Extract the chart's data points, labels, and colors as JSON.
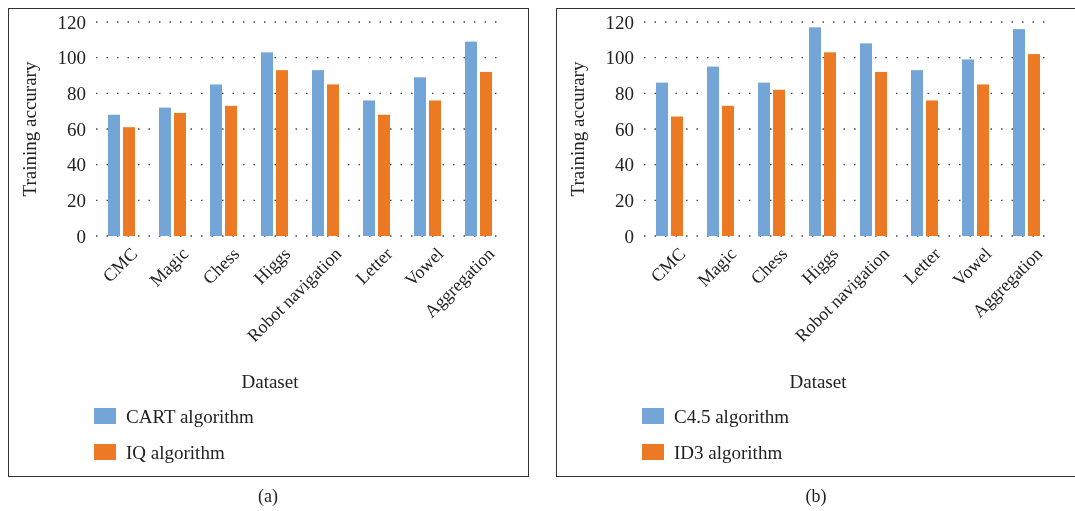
{
  "chart_data": [
    {
      "type": "bar",
      "xlabel": "Dataset",
      "ylabel": "Training accurary",
      "categories": [
        "CMC",
        "Magic",
        "Chess",
        "Higgs",
        "Robot navigation",
        "Letter",
        "Vowel",
        "Aggregation"
      ],
      "series": [
        {
          "name": "CART algorithm",
          "color": "#73a5d6",
          "values": [
            68,
            72,
            85,
            103,
            93,
            76,
            89,
            109
          ]
        },
        {
          "name": "IQ algorithm",
          "color": "#ec7a24",
          "values": [
            61,
            69,
            73,
            93,
            85,
            68,
            76,
            92
          ]
        }
      ],
      "ylim": [
        0,
        120
      ],
      "yticks": [
        0,
        20,
        40,
        60,
        80,
        100,
        120
      ],
      "grid": "y",
      "legend": "bottom left",
      "annotations": [
        "(a)"
      ]
    },
    {
      "type": "bar",
      "xlabel": "Dataset",
      "ylabel": "Training accurary",
      "categories": [
        "CMC",
        "Magic",
        "Chess",
        "Higgs",
        "Robot navigation",
        "Letter",
        "Vowel",
        "Aggregation"
      ],
      "series": [
        {
          "name": "C4.5 algorithm",
          "color": "#73a5d6",
          "values": [
            86,
            95,
            86,
            117,
            108,
            93,
            99,
            116
          ]
        },
        {
          "name": "ID3 algorithm",
          "color": "#ec7a24",
          "values": [
            67,
            73,
            82,
            103,
            92,
            76,
            85,
            102
          ]
        }
      ],
      "ylim": [
        0,
        120
      ],
      "yticks": [
        0,
        20,
        40,
        60,
        80,
        100,
        120
      ],
      "grid": "y",
      "legend": "bottom left",
      "annotations": [
        "(b)"
      ]
    }
  ]
}
